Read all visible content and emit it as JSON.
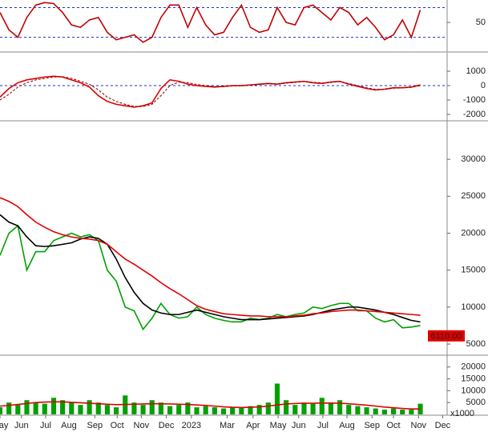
{
  "chart_data": [
    {
      "type": "line",
      "ylim": [
        -8,
        92
      ],
      "yticks": [
        50
      ],
      "levels": [
        80,
        20
      ],
      "series": [
        {
          "color": "#c00000",
          "values": [
            70,
            35,
            20,
            60,
            85,
            90,
            88,
            70,
            45,
            40,
            55,
            60,
            30,
            15,
            20,
            25,
            10,
            20,
            60,
            85,
            85,
            40,
            80,
            45,
            25,
            30,
            60,
            85,
            40,
            30,
            35,
            80,
            50,
            45,
            80,
            85,
            70,
            55,
            80,
            70,
            45,
            60,
            40,
            15,
            25,
            55,
            20,
            75
          ]
        }
      ]
    },
    {
      "type": "line",
      "ylim": [
        -2390,
        2170
      ],
      "yticks": [
        1000,
        0,
        -1000,
        -2000
      ],
      "levels": [
        0
      ],
      "series": [
        {
          "color": "#e00000",
          "values": [
            -800,
            -200,
            200,
            400,
            500,
            600,
            650,
            600,
            400,
            200,
            -100,
            -700,
            -1100,
            -1300,
            -1400,
            -1500,
            -1400,
            -1200,
            -200,
            400,
            300,
            100,
            0,
            -50,
            -100,
            -50,
            0,
            0,
            50,
            100,
            150,
            100,
            200,
            250,
            300,
            200,
            150,
            250,
            300,
            100,
            -50,
            -200,
            -300,
            -250,
            -150,
            -150,
            -100,
            50
          ]
        },
        {
          "color": "#800000",
          "style": "dashed",
          "values": [
            -1000,
            -600,
            -100,
            200,
            400,
            500,
            600,
            620,
            500,
            300,
            100,
            -300,
            -800,
            -1100,
            -1300,
            -1450,
            -1450,
            -1300,
            -700,
            0,
            250,
            200,
            80,
            0,
            -70,
            -70,
            -20,
            0,
            30,
            80,
            130,
            120,
            170,
            230,
            280,
            230,
            180,
            220,
            280,
            150,
            0,
            -150,
            -260,
            -260,
            -180,
            -160,
            -120,
            0
          ]
        }
      ]
    },
    {
      "type": "line",
      "ylim": [
        3600,
        35100
      ],
      "yticks": [
        5000,
        10000,
        15000,
        20000,
        25000,
        30000
      ],
      "last_price": {
        "value": 6110,
        "label": "6110.00"
      },
      "series": [
        {
          "color": "#00a000",
          "values": [
            17000,
            20000,
            21000,
            15000,
            17500,
            17500,
            19000,
            19500,
            20000,
            19500,
            19800,
            19000,
            15000,
            13500,
            10000,
            9500,
            7000,
            8500,
            10500,
            9000,
            8500,
            8700,
            10000,
            9000,
            8500,
            8200,
            8000,
            8000,
            8500,
            8300,
            8500,
            9000,
            8700,
            9000,
            9200,
            10000,
            9800,
            10200,
            10500,
            10500,
            9500,
            9500,
            8500,
            8000,
            8300,
            7200,
            7300,
            7500
          ]
        },
        {
          "color": "#000000",
          "values": [
            22500,
            21500,
            21000,
            19500,
            18300,
            18200,
            18300,
            18500,
            18700,
            19200,
            19500,
            19300,
            18500,
            16500,
            14000,
            12000,
            10500,
            9600,
            9200,
            9000,
            9000,
            9300,
            9600,
            9300,
            9000,
            8700,
            8500,
            8300,
            8300,
            8300,
            8400,
            8500,
            8600,
            8700,
            8800,
            9000,
            9300,
            9600,
            9800,
            10000,
            10000,
            9800,
            9600,
            9300,
            9000,
            8600,
            8200,
            8000
          ]
        },
        {
          "color": "#e00000",
          "values": [
            24800,
            24300,
            23600,
            22500,
            21500,
            20800,
            20200,
            19800,
            19500,
            19300,
            19200,
            19000,
            18500,
            17500,
            16500,
            15800,
            15000,
            14200,
            13300,
            12500,
            11800,
            11000,
            10200,
            9700,
            9400,
            9100,
            9000,
            8900,
            8800,
            8800,
            8700,
            8700,
            8700,
            8800,
            8900,
            9100,
            9200,
            9400,
            9500,
            9600,
            9600,
            9500,
            9400,
            9300,
            9200,
            9100,
            9000,
            8900
          ]
        }
      ]
    },
    {
      "type": "bar",
      "ylim": [
        0,
        24300
      ],
      "yticks": [
        5000,
        10000,
        15000,
        20000
      ],
      "unit_label": "x1000",
      "xlim": [
        0,
        50
      ],
      "xticks": [
        {
          "value": 0,
          "label": "May"
        },
        {
          "value": 2.4,
          "label": "Jun"
        },
        {
          "value": 5.1,
          "label": "Jul"
        },
        {
          "value": 7.7,
          "label": "Aug"
        },
        {
          "value": 10.6,
          "label": "Sep"
        },
        {
          "value": 13.1,
          "label": "Oct"
        },
        {
          "value": 15.8,
          "label": "Nov"
        },
        {
          "value": 18.6,
          "label": "Dec"
        },
        {
          "value": 21.4,
          "label": "2023"
        },
        {
          "value": 25.4,
          "label": "Mar"
        },
        {
          "value": 28.3,
          "label": "Apr"
        },
        {
          "value": 31.1,
          "label": "May"
        },
        {
          "value": 33.4,
          "label": "Jun"
        },
        {
          "value": 36.1,
          "label": "Jul"
        },
        {
          "value": 38.8,
          "label": "Aug"
        },
        {
          "value": 41.6,
          "label": "Sep"
        },
        {
          "value": 44,
          "label": "Oct"
        },
        {
          "value": 46.8,
          "label": "Nov"
        },
        {
          "value": 49.5,
          "label": "Dec"
        }
      ],
      "series": [
        {
          "color": "#00a000",
          "values": [
            3000,
            5000,
            4000,
            6000,
            5000,
            4500,
            7000,
            6000,
            5000,
            4000,
            6000,
            5000,
            4000,
            3000,
            8000,
            5000,
            4000,
            6000,
            5000,
            3500,
            4000,
            5000,
            3000,
            3500,
            3000,
            2500,
            3000,
            2800,
            3500,
            4000,
            5000,
            13000,
            6000,
            4000,
            5000,
            4500,
            7000,
            5000,
            6000,
            4000,
            3500,
            3000,
            2500,
            2000,
            2500,
            2000,
            2000,
            4500
          ]
        },
        {
          "color": "#e00000",
          "style": "line",
          "values": [
            3500,
            3800,
            4200,
            4600,
            5000,
            5200,
            5300,
            5300,
            5100,
            4900,
            4700,
            4500,
            4300,
            4100,
            4200,
            4300,
            4400,
            4500,
            4500,
            4400,
            4300,
            4200,
            4000,
            3800,
            3500,
            3200,
            3000,
            2900,
            3000,
            3200,
            3500,
            4000,
            4400,
            4600,
            4700,
            4700,
            4800,
            4800,
            4700,
            4500,
            4200,
            3900,
            3500,
            3100,
            2800,
            2500,
            2300,
            2300
          ]
        }
      ]
    }
  ]
}
